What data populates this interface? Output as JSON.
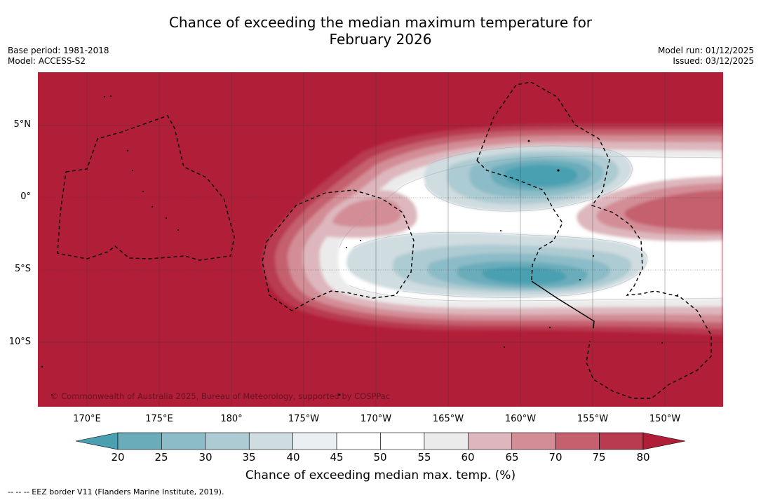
{
  "title": {
    "line1": "Chance of exceeding the median maximum temperature for",
    "line2": "February 2026"
  },
  "meta": {
    "base_period": "Base period: 1981-2018",
    "model": "Model: ACCESS-S2",
    "model_run": "Model run: 01/12/2025",
    "issued": "Issued: 03/12/2025"
  },
  "map": {
    "lat_labels": [
      "5°N",
      "0°",
      "5°S",
      "10°S"
    ],
    "lon_labels": [
      "170°E",
      "175°E",
      "180°",
      "175°W",
      "170°W",
      "165°W",
      "160°W",
      "155°W",
      "150°W"
    ],
    "copyright": "© Commonwealth of Australia 2025, Bureau of Meteorology, supported by COSPPac"
  },
  "colorbar": {
    "ticks": [
      "20",
      "25",
      "30",
      "35",
      "40",
      "45",
      "50",
      "55",
      "60",
      "65",
      "70",
      "75",
      "80"
    ],
    "colors": [
      "#4aa0b0",
      "#6aacba",
      "#8bbcc7",
      "#adcbd2",
      "#cfdce0",
      "#eaeff1",
      "#ffffff",
      "#ffffff",
      "#ecebec",
      "#ddb7bd",
      "#d38d96",
      "#c5606e",
      "#b83b4f",
      "#b11e38"
    ],
    "title": "Chance of exceeding median max. temp. (%)"
  },
  "legend": {
    "eez": "--  --  -- EEZ border V11 (Flanders Marine Institute, 2019)."
  }
}
